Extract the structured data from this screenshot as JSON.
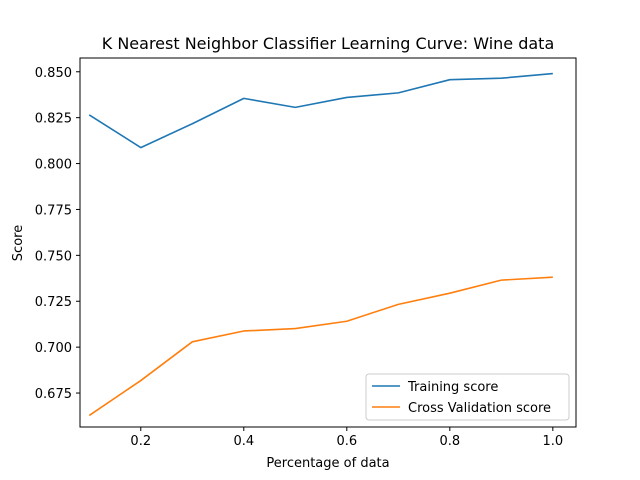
{
  "chart_data": {
    "type": "line",
    "title": "K Nearest Neighbor Classifier Learning Curve: Wine data",
    "xlabel": "Percentage of data",
    "ylabel": "Score",
    "x": [
      0.1,
      0.2,
      0.3,
      0.4,
      0.5,
      0.6,
      0.7,
      0.8,
      0.9,
      1.0
    ],
    "xlim": [
      0.082,
      1.045
    ],
    "ylim": [
      0.6565,
      0.8575
    ],
    "xticks": [
      "0.2",
      "0.4",
      "0.6",
      "0.8",
      "1.0"
    ],
    "yticks": [
      "0.675",
      "0.700",
      "0.725",
      "0.750",
      "0.775",
      "0.800",
      "0.825",
      "0.850"
    ],
    "grid": false,
    "legend_position": "lower-right",
    "series": [
      {
        "name": "Training score",
        "color": "#1f77b4",
        "values": [
          0.8265,
          0.8087,
          0.8217,
          0.8355,
          0.8306,
          0.836,
          0.8385,
          0.8457,
          0.8465,
          0.849
        ]
      },
      {
        "name": "Cross Validation score",
        "color": "#ff7f0e",
        "values": [
          0.6628,
          0.6818,
          0.7029,
          0.7088,
          0.7101,
          0.7141,
          0.7233,
          0.7294,
          0.7365,
          0.7381
        ]
      }
    ]
  }
}
